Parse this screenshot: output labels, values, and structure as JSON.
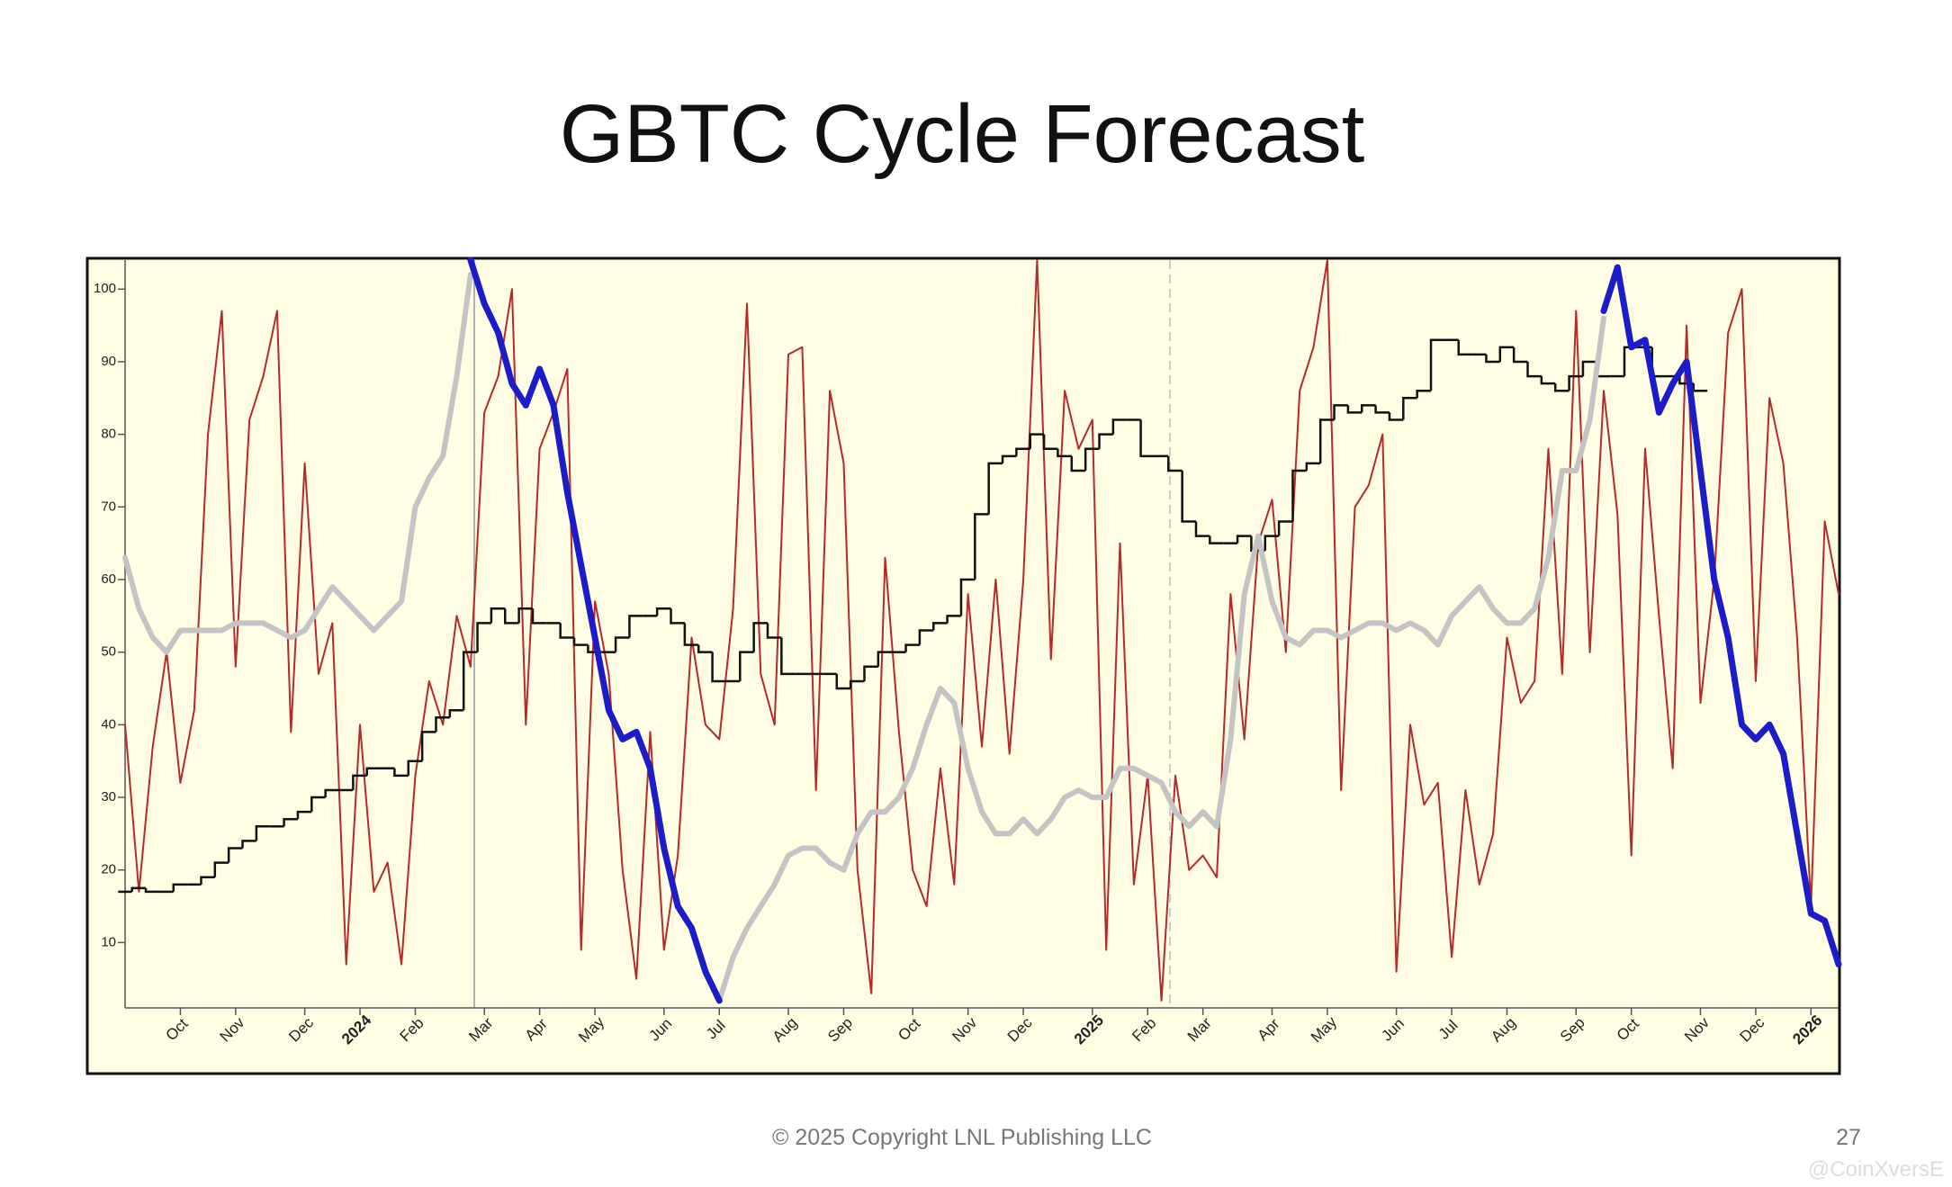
{
  "title": "GBTC Cycle Forecast",
  "footer": "© 2025 Copyright LNL Publishing LLC",
  "page_number": "27",
  "watermark": "@CoinXversE",
  "chart_data": {
    "type": "line",
    "categories": [
      null,
      null,
      null,
      null,
      "Oct",
      null,
      null,
      null,
      "Nov",
      null,
      null,
      null,
      null,
      "Dec",
      null,
      null,
      null,
      "2024",
      null,
      null,
      null,
      "Feb",
      null,
      null,
      null,
      null,
      "Mar",
      null,
      null,
      null,
      "Apr",
      null,
      null,
      null,
      "May",
      null,
      null,
      null,
      null,
      "Jun",
      null,
      null,
      null,
      "Jul",
      null,
      null,
      null,
      null,
      "Aug",
      null,
      null,
      null,
      "Sep",
      null,
      null,
      null,
      null,
      "Oct",
      null,
      null,
      null,
      "Nov",
      null,
      null,
      null,
      "Dec",
      null,
      null,
      null,
      null,
      "2025",
      null,
      null,
      null,
      "Feb",
      null,
      null,
      null,
      "Mar",
      null,
      null,
      null,
      null,
      "Apr",
      null,
      null,
      null,
      "May",
      null,
      null,
      null,
      null,
      "Jun",
      null,
      null,
      null,
      "Jul",
      null,
      null,
      null,
      "Aug",
      null,
      null,
      null,
      null,
      "Sep",
      null,
      null,
      null,
      "Oct",
      null,
      null,
      null,
      null,
      "Nov",
      null,
      null,
      null,
      "Dec",
      null,
      null,
      null,
      "2026",
      null,
      null
    ],
    "series": [
      {
        "color": "#b52a2a",
        "values": [
          40,
          17,
          37,
          50,
          32,
          42,
          80,
          97,
          48,
          82,
          88,
          97,
          39,
          76,
          47,
          54,
          7,
          40,
          17,
          21,
          7,
          33,
          46,
          40,
          55,
          48,
          83,
          88,
          100,
          40,
          78,
          83,
          89,
          9,
          57,
          47,
          20,
          5,
          39,
          9,
          22,
          52,
          40,
          38,
          56,
          98,
          47,
          40,
          91,
          92,
          31,
          86,
          76,
          20,
          3,
          63,
          39,
          20,
          15,
          34,
          18,
          58,
          37,
          60,
          36,
          60,
          104,
          49,
          86,
          78,
          82,
          9,
          65,
          18,
          33,
          2,
          33,
          20,
          22,
          19,
          58,
          38,
          65,
          71,
          50,
          86,
          92,
          104,
          31,
          70,
          73,
          80,
          6,
          40,
          29,
          32,
          8,
          31,
          18,
          25,
          52,
          43,
          46,
          78,
          47,
          97,
          50,
          86,
          69,
          22,
          78,
          55,
          34,
          95,
          43,
          60,
          94,
          100,
          46,
          85,
          76,
          52,
          15,
          68,
          58
        ]
      },
      {
        "color": "#111111",
        "type": "step",
        "values": [
          17,
          17.5,
          17,
          17,
          18,
          18,
          19,
          21,
          23,
          24,
          26,
          26,
          27,
          28,
          30,
          31,
          31,
          33,
          34,
          34,
          33,
          35,
          39,
          41,
          42,
          50,
          54,
          56,
          54,
          56,
          54,
          54,
          52,
          51,
          50,
          50,
          52,
          55,
          55,
          56,
          54,
          51,
          50,
          46,
          46,
          50,
          54,
          52,
          47,
          47,
          47,
          47,
          45,
          46,
          48,
          50,
          50,
          51,
          53,
          54,
          55,
          60,
          69,
          76,
          77,
          78,
          80,
          78,
          77,
          75,
          78,
          80,
          82,
          82,
          77,
          77,
          75,
          68,
          66,
          65,
          65,
          66,
          64,
          66,
          68,
          75,
          76,
          82,
          84,
          83,
          84,
          83,
          82,
          85,
          86,
          93,
          93,
          91,
          91,
          90,
          92,
          90,
          88,
          87,
          86,
          88,
          90,
          88,
          88,
          92,
          92,
          88,
          88,
          87,
          86,
          null,
          null,
          null,
          null,
          null,
          null,
          null,
          null,
          null,
          null
        ]
      },
      {
        "color": "#c4c4c4",
        "values": [
          63,
          56,
          52,
          50,
          53,
          53,
          53,
          53,
          54,
          54,
          54,
          53,
          52,
          53,
          56,
          59,
          57,
          55,
          53,
          55,
          57,
          70,
          74,
          77,
          88,
          102,
          null,
          null,
          null,
          null,
          null,
          null,
          null,
          null,
          null,
          null,
          null,
          null,
          null,
          null,
          null,
          null,
          null,
          2,
          8,
          12,
          15,
          18,
          22,
          23,
          23,
          21,
          20,
          25,
          28,
          28,
          30,
          34,
          40,
          45,
          43,
          34,
          28,
          25,
          25,
          27,
          25,
          27,
          30,
          31,
          30,
          30,
          34,
          34,
          33,
          32,
          28,
          26,
          28,
          26,
          38,
          58,
          66,
          57,
          52,
          51,
          53,
          53,
          52,
          53,
          54,
          54,
          53,
          54,
          53,
          51,
          55,
          57,
          59,
          56,
          54,
          54,
          56,
          63,
          75,
          75,
          82,
          96,
          null,
          null,
          null,
          null,
          null,
          null,
          null,
          null,
          null,
          null,
          null,
          null,
          null,
          null,
          null,
          null,
          null
        ]
      },
      {
        "color": "#1c1cc8",
        "values": [
          null,
          null,
          null,
          null,
          null,
          null,
          null,
          null,
          null,
          null,
          null,
          null,
          null,
          null,
          null,
          null,
          null,
          null,
          null,
          null,
          null,
          null,
          null,
          null,
          null,
          104,
          98,
          94,
          87,
          84,
          89,
          84,
          72,
          62,
          52,
          42,
          38,
          39,
          34,
          23,
          15,
          12,
          6,
          2,
          null,
          null,
          null,
          null,
          null,
          null,
          null,
          null,
          null,
          null,
          null,
          null,
          null,
          null,
          null,
          null,
          null,
          null,
          null,
          null,
          null,
          null,
          null,
          null,
          null,
          null,
          null,
          null,
          null,
          null,
          null,
          null,
          null,
          null,
          null,
          null,
          null,
          null,
          null,
          null,
          null,
          null,
          null,
          null,
          null,
          null,
          null,
          null,
          null,
          null,
          null,
          null,
          null,
          null,
          null,
          null,
          null,
          null,
          null,
          null,
          null,
          null,
          null,
          97,
          103,
          92,
          93,
          83,
          87,
          90,
          75,
          60,
          52,
          40,
          38,
          40,
          36,
          25,
          14,
          13,
          7
        ]
      }
    ],
    "ylim": [
      1,
      104
    ],
    "yticks": [
      10,
      20,
      30,
      40,
      50,
      60,
      70,
      80,
      90,
      100
    ]
  }
}
